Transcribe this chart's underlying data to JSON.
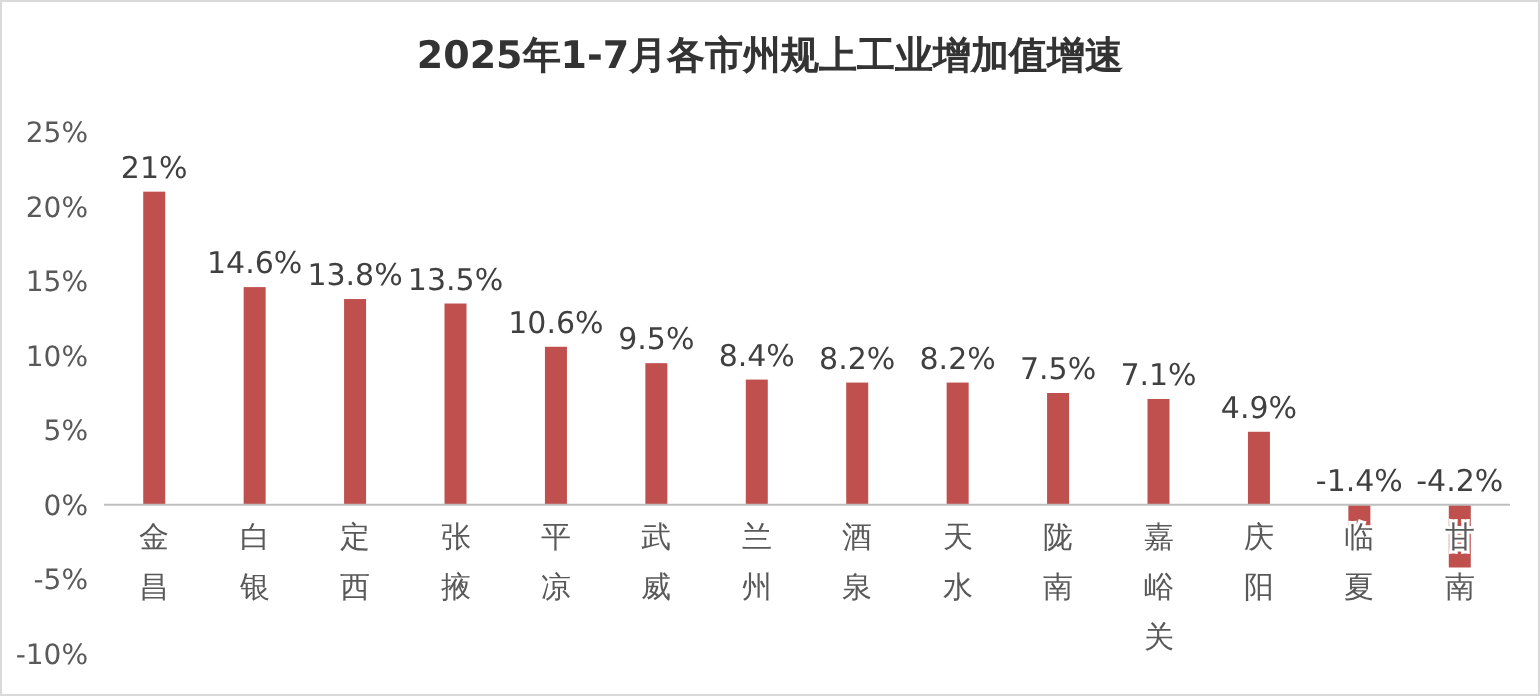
{
  "chart_data": {
    "type": "bar",
    "title": "2025年1-7月各市州规上工业增加值增速",
    "categories": [
      "金昌",
      "白银",
      "定西",
      "张掖",
      "平凉",
      "武威",
      "兰州",
      "酒泉",
      "天水",
      "陇南",
      "嘉峪关",
      "庆阳",
      "临夏",
      "甘南"
    ],
    "values": [
      21,
      14.6,
      13.8,
      13.5,
      10.6,
      9.5,
      8.4,
      8.2,
      8.2,
      7.5,
      7.1,
      4.9,
      -1.4,
      -4.2
    ],
    "value_labels": [
      "21%",
      "14.6%",
      "13.8%",
      "13.5%",
      "10.6%",
      "9.5%",
      "8.4%",
      "8.2%",
      "8.2%",
      "7.5%",
      "7.1%",
      "4.9%",
      "-1.4%",
      "-4.2%"
    ],
    "color": "#c0504d",
    "ylim": [
      -10,
      25
    ],
    "yticks": [
      {
        "value": -10,
        "label": "-10%"
      },
      {
        "value": -5,
        "label": "-5%"
      },
      {
        "value": 0,
        "label": "0%"
      },
      {
        "value": 5,
        "label": "5%"
      },
      {
        "value": 10,
        "label": "10%"
      },
      {
        "value": 15,
        "label": "15%"
      },
      {
        "value": 20,
        "label": "20%"
      },
      {
        "value": 25,
        "label": "25%"
      }
    ],
    "grid": false
  }
}
